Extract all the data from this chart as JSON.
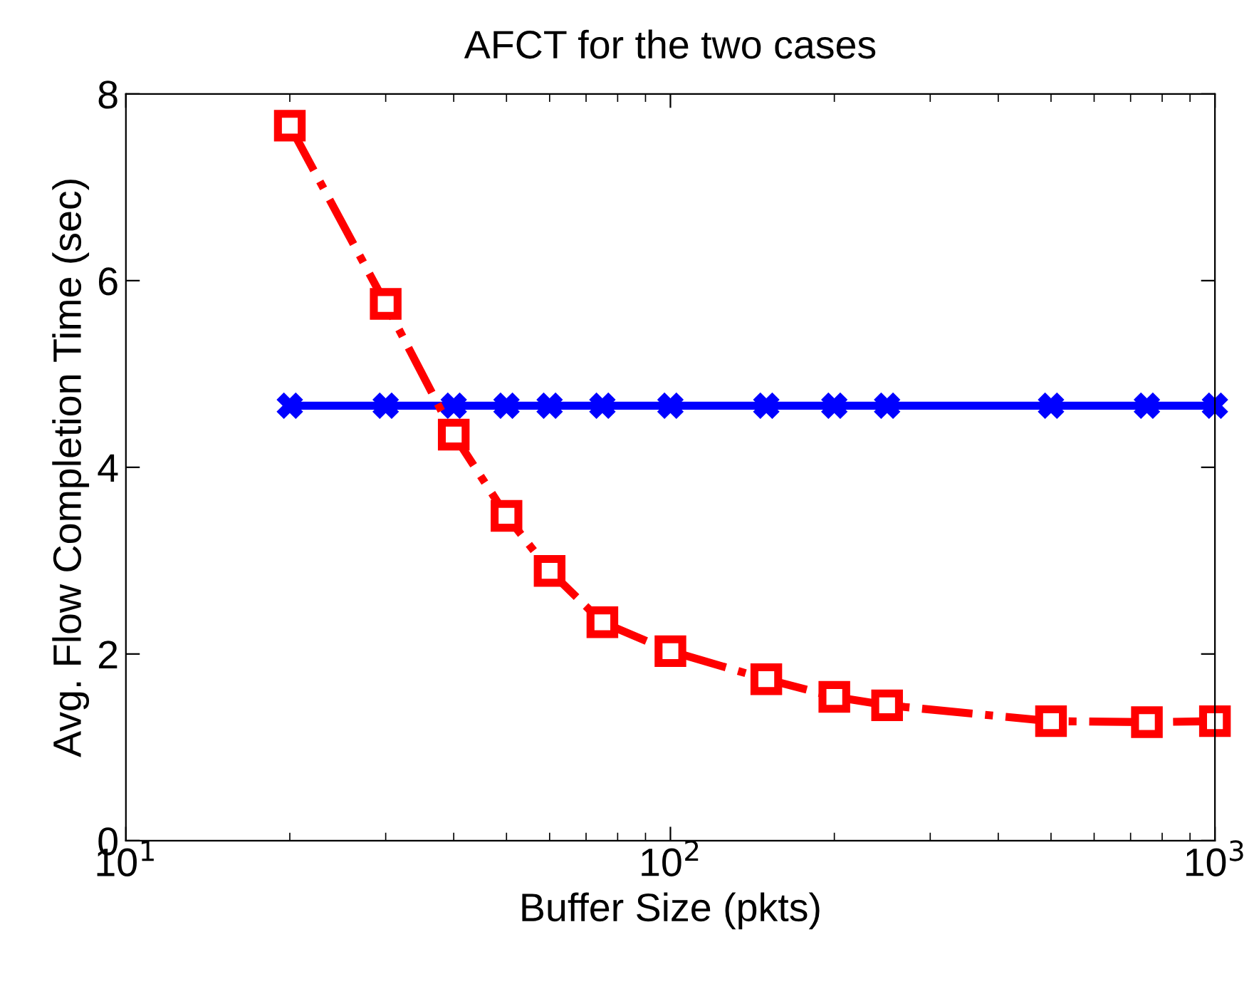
{
  "chart_data": {
    "type": "line",
    "title": "AFCT for the two cases",
    "xlabel": "Buffer Size (pkts)",
    "ylabel": "Avg. Flow Completion Time (sec)",
    "x": [
      20,
      30,
      40,
      50,
      60,
      75,
      100,
      150,
      200,
      250,
      500,
      750,
      1000
    ],
    "series": [
      {
        "color": "#0000ff",
        "marker": "cross",
        "line_style": "solid",
        "values": [
          4.66,
          4.66,
          4.66,
          4.66,
          4.66,
          4.66,
          4.66,
          4.66,
          4.66,
          4.66,
          4.66,
          4.66,
          4.66
        ]
      },
      {
        "color": "#ff0000",
        "marker": "square",
        "line_style": "dashdot",
        "values": [
          7.66,
          5.75,
          4.35,
          3.48,
          2.89,
          2.34,
          2.03,
          1.73,
          1.54,
          1.45,
          1.28,
          1.27,
          1.28
        ]
      }
    ],
    "log": "x",
    "xlim": [
      10,
      1000
    ],
    "ylim": [
      0,
      8
    ],
    "xticks": [
      {
        "value": 10,
        "label": "10$^{1}$"
      },
      {
        "value": 100,
        "label": "10$^{2}$"
      },
      {
        "value": 1000,
        "label": "10$^{3}$"
      }
    ],
    "yticks": [
      0,
      2,
      4,
      6,
      8
    ],
    "grid": false,
    "legend": false
  }
}
